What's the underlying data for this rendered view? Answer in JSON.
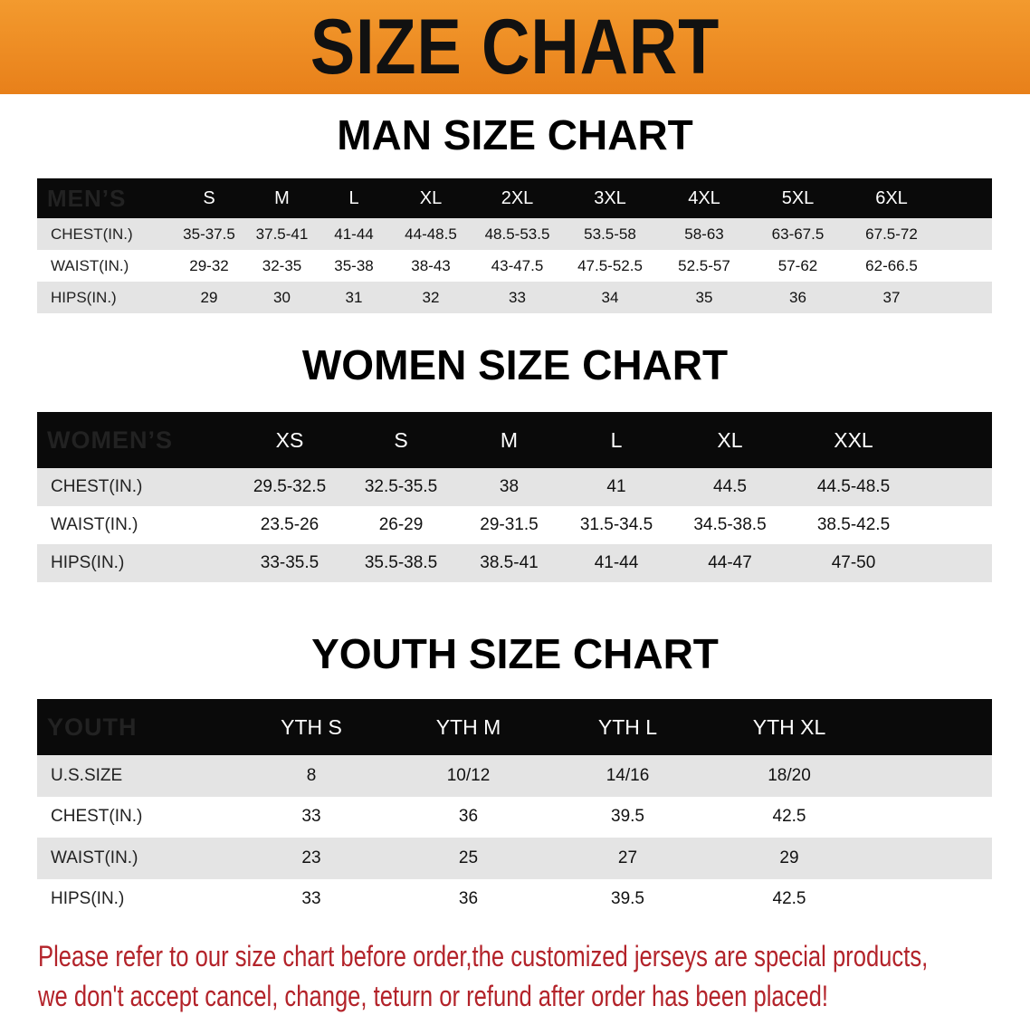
{
  "banner": "SIZE CHART",
  "men": {
    "title": "MAN SIZE CHART",
    "header": [
      "MEN’S",
      "S",
      "M",
      "L",
      "XL",
      "2XL",
      "3XL",
      "4XL",
      "5XL",
      "6XL"
    ],
    "rows": [
      [
        "CHEST(IN.)",
        "35-37.5",
        "37.5-41",
        "41-44",
        "44-48.5",
        "48.5-53.5",
        "53.5-58",
        "58-63",
        "63-67.5",
        "67.5-72"
      ],
      [
        "WAIST(IN.)",
        "29-32",
        "32-35",
        "35-38",
        "38-43",
        "43-47.5",
        "47.5-52.5",
        "52.5-57",
        "57-62",
        "62-66.5"
      ],
      [
        "HIPS(IN.)",
        "29",
        "30",
        "31",
        "32",
        "33",
        "34",
        "35",
        "36",
        "37"
      ]
    ]
  },
  "women": {
    "title": "WOMEN SIZE CHART",
    "header": [
      "WOMEN’S",
      "XS",
      "S",
      "M",
      "L",
      "XL",
      "XXL"
    ],
    "rows": [
      [
        "CHEST(IN.)",
        "29.5-32.5",
        "32.5-35.5",
        "38",
        "41",
        "44.5",
        "44.5-48.5"
      ],
      [
        "WAIST(IN.)",
        "23.5-26",
        "26-29",
        "29-31.5",
        "31.5-34.5",
        "34.5-38.5",
        "38.5-42.5"
      ],
      [
        "HIPS(IN.)",
        "33-35.5",
        "35.5-38.5",
        "38.5-41",
        "41-44",
        "44-47",
        "47-50"
      ]
    ]
  },
  "youth": {
    "title": "YOUTH SIZE CHART",
    "header": [
      "YOUTH",
      "YTH S",
      "YTH M",
      "YTH L",
      "YTH XL"
    ],
    "rows": [
      [
        "U.S.SIZE",
        "8",
        "10/12",
        "14/16",
        "18/20"
      ],
      [
        "CHEST(IN.)",
        "33",
        "36",
        "39.5",
        "42.5"
      ],
      [
        "WAIST(IN.)",
        "23",
        "25",
        "27",
        "29"
      ],
      [
        "HIPS(IN.)",
        "33",
        "36",
        "39.5",
        "42.5"
      ]
    ]
  },
  "note": {
    "line1": "Please refer to our size chart before order,the customized jerseys are special products,",
    "line2": "we don't accept cancel, change, teturn or refund after order has been placed!"
  },
  "colors": {
    "banner": "#ee8a22",
    "header_row": "#0a0a0a",
    "stripe": "#e4e4e4",
    "note": "#b3232a"
  }
}
